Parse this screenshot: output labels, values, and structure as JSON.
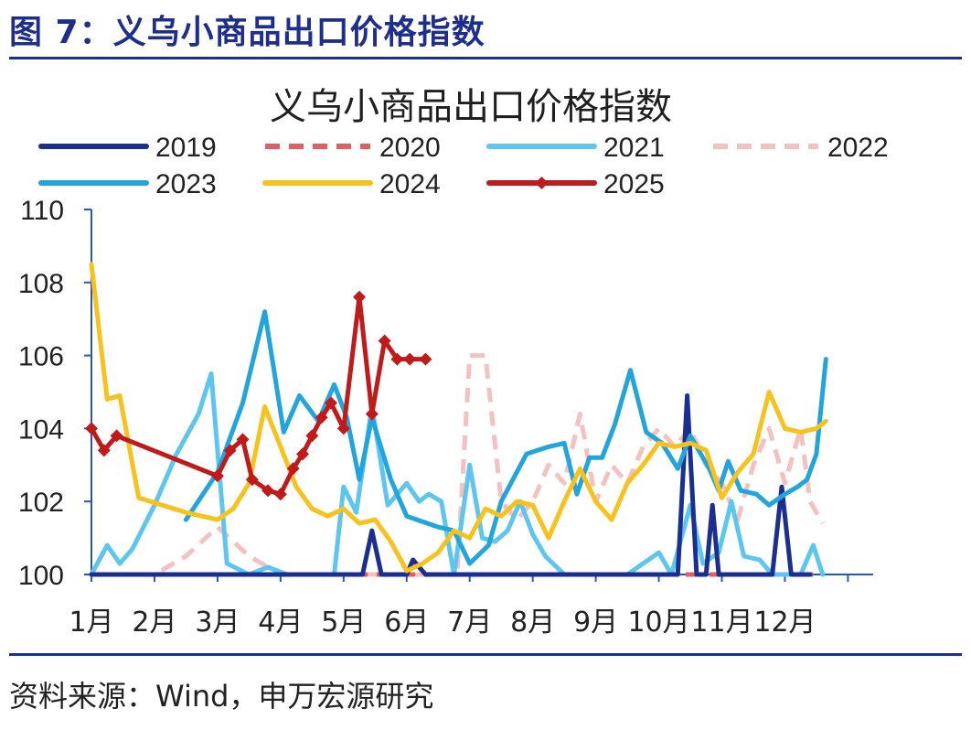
{
  "figure_title": "图 7：义乌小商品出口价格指数",
  "source": "资料来源：Wind，申万宏源研究",
  "chart_data": {
    "type": "line",
    "title": "义乌小商品出口价格指数",
    "xlabel": "",
    "ylabel": "",
    "ylim": [
      100,
      110
    ],
    "yticks": [
      100,
      102,
      104,
      106,
      108,
      110
    ],
    "xlim": [
      1,
      13
    ],
    "xticks": [
      {
        "label": "1月",
        "x": 1
      },
      {
        "label": "2月",
        "x": 2
      },
      {
        "label": "3月",
        "x": 3
      },
      {
        "label": "4月",
        "x": 4
      },
      {
        "label": "5月",
        "x": 5
      },
      {
        "label": "6月",
        "x": 6
      },
      {
        "label": "7月",
        "x": 7
      },
      {
        "label": "8月",
        "x": 8
      },
      {
        "label": "9月",
        "x": 9
      },
      {
        "label": "10月",
        "x": 10
      },
      {
        "label": "11月",
        "x": 11
      },
      {
        "label": "12月",
        "x": 12
      }
    ],
    "legend_position": "top",
    "series": [
      {
        "name": "2019",
        "color": "#1a2f8f",
        "dash": "solid",
        "markers": false,
        "points": [
          [
            1.0,
            100
          ],
          [
            1.5,
            100
          ],
          [
            2.0,
            100
          ],
          [
            2.5,
            100
          ],
          [
            3.0,
            100
          ],
          [
            3.5,
            100
          ],
          [
            4.0,
            100
          ],
          [
            4.5,
            100
          ],
          [
            5.0,
            100
          ],
          [
            5.3,
            100
          ],
          [
            5.45,
            101.2
          ],
          [
            5.6,
            100
          ],
          [
            6.0,
            100
          ],
          [
            6.1,
            100.4
          ],
          [
            6.3,
            100
          ],
          [
            6.6,
            100
          ],
          [
            7.0,
            100
          ],
          [
            7.5,
            100
          ],
          [
            8.0,
            100
          ],
          [
            8.5,
            100
          ],
          [
            9.0,
            100
          ],
          [
            9.5,
            100
          ],
          [
            10.0,
            100
          ],
          [
            10.3,
            100
          ],
          [
            10.45,
            104.9
          ],
          [
            10.6,
            100
          ],
          [
            10.75,
            100
          ],
          [
            10.85,
            101.9
          ],
          [
            10.95,
            100
          ],
          [
            11.5,
            100
          ],
          [
            11.8,
            100
          ],
          [
            11.95,
            102.4
          ],
          [
            12.1,
            100
          ],
          [
            12.4,
            100
          ]
        ]
      },
      {
        "name": "2020",
        "color": "#e06060",
        "dash": "dashed",
        "markers": false,
        "points": [
          [
            1.0,
            100
          ],
          [
            2.0,
            100
          ],
          [
            3.0,
            100
          ],
          [
            4.0,
            100
          ],
          [
            5.0,
            100
          ],
          [
            6.0,
            100
          ],
          [
            7.0,
            100
          ],
          [
            8.0,
            100
          ],
          [
            9.0,
            100
          ],
          [
            10.0,
            100
          ],
          [
            11.0,
            100
          ],
          [
            12.0,
            100
          ],
          [
            12.45,
            100
          ]
        ]
      },
      {
        "name": "2021",
        "color": "#5cc6ee",
        "dash": "solid",
        "markers": false,
        "points": [
          [
            1.0,
            100
          ],
          [
            1.25,
            100.8
          ],
          [
            1.45,
            100.3
          ],
          [
            1.65,
            100.7
          ],
          [
            2.0,
            101.9
          ],
          [
            2.35,
            103.3
          ],
          [
            2.7,
            104.4
          ],
          [
            2.9,
            105.5
          ],
          [
            3.15,
            100.3
          ],
          [
            3.5,
            100.0
          ],
          [
            3.8,
            100.2
          ],
          [
            4.1,
            100.0
          ],
          [
            4.5,
            100.0
          ],
          [
            4.85,
            100
          ],
          [
            5.0,
            102.4
          ],
          [
            5.2,
            101.7
          ],
          [
            5.45,
            104.6
          ],
          [
            5.7,
            101.9
          ],
          [
            6.0,
            102.5
          ],
          [
            6.2,
            102.0
          ],
          [
            6.35,
            102.2
          ],
          [
            6.55,
            102.0
          ],
          [
            6.75,
            100
          ],
          [
            7.0,
            103.0
          ],
          [
            7.2,
            101.0
          ],
          [
            7.4,
            100.9
          ],
          [
            7.6,
            101.2
          ],
          [
            7.8,
            102.0
          ],
          [
            8.0,
            101.1
          ],
          [
            8.2,
            100.5
          ],
          [
            8.5,
            100
          ],
          [
            9.0,
            100
          ],
          [
            9.5,
            100
          ],
          [
            10.0,
            100.6
          ],
          [
            10.2,
            100
          ],
          [
            10.5,
            101.9
          ],
          [
            10.7,
            100.3
          ],
          [
            10.95,
            100.6
          ],
          [
            11.15,
            102.0
          ],
          [
            11.35,
            100.5
          ],
          [
            11.6,
            100.4
          ],
          [
            11.8,
            100
          ],
          [
            12.0,
            100
          ],
          [
            12.25,
            100
          ],
          [
            12.45,
            100.8
          ],
          [
            12.6,
            100
          ]
        ]
      },
      {
        "name": "2022",
        "color": "#f5c0c0",
        "dash": "dashed",
        "markers": false,
        "points": [
          [
            1.0,
            100
          ],
          [
            2.0,
            100
          ],
          [
            2.5,
            100.5
          ],
          [
            3.0,
            101.3
          ],
          [
            3.5,
            100.5
          ],
          [
            4.0,
            100
          ],
          [
            5.0,
            100
          ],
          [
            6.0,
            100
          ],
          [
            6.8,
            100
          ],
          [
            7.0,
            106.0
          ],
          [
            7.25,
            106.0
          ],
          [
            7.5,
            102.0
          ],
          [
            7.75,
            101.5
          ],
          [
            8.0,
            102.0
          ],
          [
            8.25,
            103.0
          ],
          [
            8.5,
            102.5
          ],
          [
            8.75,
            104.4
          ],
          [
            9.0,
            102.0
          ],
          [
            9.25,
            103.0
          ],
          [
            9.5,
            102.5
          ],
          [
            9.75,
            103.5
          ],
          [
            10.0,
            104.0
          ],
          [
            10.25,
            103.5
          ],
          [
            10.5,
            104.0
          ],
          [
            10.75,
            103.0
          ],
          [
            11.0,
            102.5
          ],
          [
            11.25,
            101.5
          ],
          [
            11.5,
            103.0
          ],
          [
            11.75,
            104.0
          ],
          [
            12.0,
            102.5
          ],
          [
            12.25,
            104.0
          ],
          [
            12.4,
            102.0
          ],
          [
            12.6,
            101.4
          ]
        ]
      },
      {
        "name": "2023",
        "color": "#22a5dc",
        "dash": "solid",
        "markers": false,
        "points": [
          [
            2.5,
            101.5
          ],
          [
            3.0,
            102.8
          ],
          [
            3.4,
            104.7
          ],
          [
            3.75,
            107.2
          ],
          [
            4.05,
            103.9
          ],
          [
            4.3,
            104.9
          ],
          [
            4.6,
            104.2
          ],
          [
            4.85,
            105.2
          ],
          [
            5.05,
            104.3
          ],
          [
            5.25,
            102.6
          ],
          [
            5.45,
            104.3
          ],
          [
            5.75,
            102.6
          ],
          [
            6.0,
            101.6
          ],
          [
            6.5,
            101.3
          ],
          [
            6.75,
            101.2
          ],
          [
            7.0,
            100.3
          ],
          [
            7.3,
            100.8
          ],
          [
            7.5,
            102.0
          ],
          [
            7.9,
            103.3
          ],
          [
            8.25,
            103.5
          ],
          [
            8.5,
            103.6
          ],
          [
            8.7,
            102.2
          ],
          [
            8.9,
            103.2
          ],
          [
            9.1,
            103.2
          ],
          [
            9.3,
            104.1
          ],
          [
            9.55,
            105.6
          ],
          [
            9.8,
            103.9
          ],
          [
            10.05,
            103.6
          ],
          [
            10.3,
            102.9
          ],
          [
            10.5,
            103.8
          ],
          [
            10.8,
            102.9
          ],
          [
            10.95,
            102.3
          ],
          [
            11.1,
            103.1
          ],
          [
            11.3,
            102.3
          ],
          [
            11.55,
            102.2
          ],
          [
            11.75,
            101.9
          ],
          [
            12.0,
            102.2
          ],
          [
            12.2,
            102.4
          ],
          [
            12.35,
            102.6
          ],
          [
            12.5,
            103.3
          ],
          [
            12.65,
            105.9
          ]
        ]
      },
      {
        "name": "2024",
        "color": "#f7c21b",
        "dash": "solid",
        "markers": false,
        "points": [
          [
            1.0,
            108.5
          ],
          [
            1.25,
            104.8
          ],
          [
            1.45,
            104.9
          ],
          [
            1.75,
            102.1
          ],
          [
            2.5,
            101.7
          ],
          [
            3.0,
            101.5
          ],
          [
            3.25,
            101.8
          ],
          [
            3.5,
            102.5
          ],
          [
            3.75,
            104.6
          ],
          [
            4.0,
            103.5
          ],
          [
            4.25,
            102.4
          ],
          [
            4.5,
            101.8
          ],
          [
            4.75,
            101.6
          ],
          [
            5.0,
            101.8
          ],
          [
            5.25,
            101.4
          ],
          [
            5.5,
            101.5
          ],
          [
            5.75,
            100.9
          ],
          [
            6.0,
            100.1
          ],
          [
            6.25,
            100.3
          ],
          [
            6.5,
            100.6
          ],
          [
            6.75,
            101.2
          ],
          [
            7.0,
            101.0
          ],
          [
            7.25,
            101.8
          ],
          [
            7.5,
            101.6
          ],
          [
            7.75,
            102.0
          ],
          [
            8.0,
            101.9
          ],
          [
            8.25,
            101.0
          ],
          [
            8.5,
            102.0
          ],
          [
            8.75,
            102.9
          ],
          [
            9.0,
            102.0
          ],
          [
            9.25,
            101.5
          ],
          [
            9.5,
            102.5
          ],
          [
            9.75,
            103.0
          ],
          [
            10.0,
            103.6
          ],
          [
            10.25,
            103.5
          ],
          [
            10.5,
            103.6
          ],
          [
            10.75,
            103.4
          ],
          [
            11.0,
            102.1
          ],
          [
            11.25,
            102.8
          ],
          [
            11.5,
            103.3
          ],
          [
            11.75,
            105.0
          ],
          [
            12.0,
            104.0
          ],
          [
            12.25,
            103.9
          ],
          [
            12.5,
            104.0
          ],
          [
            12.65,
            104.2
          ]
        ]
      },
      {
        "name": "2025",
        "color": "#c01a1a",
        "dash": "solid",
        "markers": true,
        "points": [
          [
            1.0,
            104.0
          ],
          [
            1.2,
            103.4
          ],
          [
            1.4,
            103.8
          ],
          [
            3.0,
            102.7
          ],
          [
            3.2,
            103.4
          ],
          [
            3.4,
            103.7
          ],
          [
            3.55,
            102.6
          ],
          [
            3.8,
            102.3
          ],
          [
            4.0,
            102.2
          ],
          [
            4.2,
            102.9
          ],
          [
            4.35,
            103.3
          ],
          [
            4.5,
            103.8
          ],
          [
            4.65,
            104.3
          ],
          [
            4.8,
            104.7
          ],
          [
            5.0,
            104.0
          ],
          [
            5.25,
            107.6
          ],
          [
            5.45,
            104.4
          ],
          [
            5.65,
            106.4
          ],
          [
            5.85,
            105.9
          ],
          [
            6.05,
            105.9
          ],
          [
            6.3,
            105.9
          ]
        ]
      }
    ]
  }
}
